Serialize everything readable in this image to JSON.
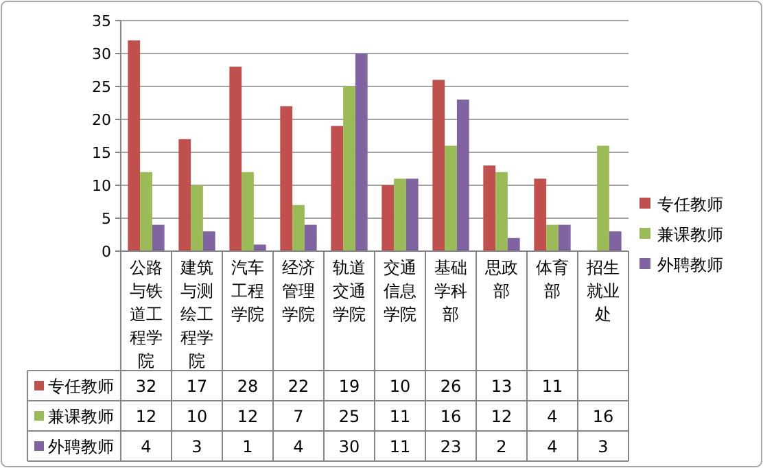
{
  "chart_data": {
    "type": "bar",
    "categories": [
      "公路与铁道工程学院",
      "建筑与测绘工程学院",
      "汽车工程学院",
      "经济管理学院",
      "轨道交通学院",
      "交通信息学院",
      "基础学科部",
      "思政部",
      "体育部",
      "招生就业处"
    ],
    "series": [
      {
        "name": "专任教师",
        "color": "#c0504d",
        "values": [
          32,
          17,
          28,
          22,
          19,
          10,
          26,
          13,
          11,
          null
        ]
      },
      {
        "name": "兼课教师",
        "color": "#9bbb59",
        "values": [
          12,
          10,
          12,
          7,
          25,
          11,
          16,
          12,
          4,
          16
        ]
      },
      {
        "name": "外聘教师",
        "color": "#8064a2",
        "values": [
          4,
          3,
          1,
          4,
          30,
          11,
          23,
          2,
          4,
          3
        ]
      }
    ],
    "ylim": [
      0,
      35
    ],
    "yticks": [
      0,
      5,
      10,
      15,
      20,
      25,
      30,
      35
    ],
    "grid": "y",
    "legend": "right",
    "data_labels": true
  }
}
